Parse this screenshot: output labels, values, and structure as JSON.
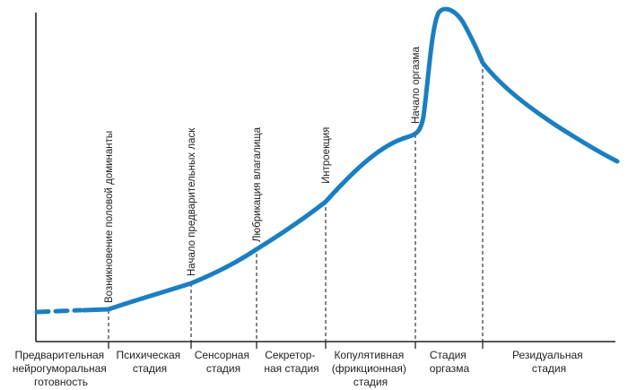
{
  "colors": {
    "curve": "#1a7fc1",
    "axis": "#222222",
    "text": "#222222"
  },
  "events": [
    {
      "id": "dominant",
      "label": "Возникновение  половой доминанты"
    },
    {
      "id": "foreplay",
      "label": "Начало  предварительных  ласк"
    },
    {
      "id": "lubrication",
      "label": "Любрикация  влагалища"
    },
    {
      "id": "intromission",
      "label": "Интроекция"
    },
    {
      "id": "orgasm-onset",
      "label": "Начало  оргазма"
    },
    {
      "id": "orgasm-end",
      "label": ""
    }
  ],
  "stages": [
    {
      "id": "preliminary",
      "lines": [
        "Предварительная",
        "нейрогуморальная",
        "готовность"
      ]
    },
    {
      "id": "psychic",
      "lines": [
        "Психическая",
        "стадия"
      ]
    },
    {
      "id": "sensory",
      "lines": [
        "Сенсорная",
        "стадия"
      ]
    },
    {
      "id": "secretory",
      "lines": [
        "Секретор-",
        "ная стадия"
      ]
    },
    {
      "id": "copulative",
      "lines": [
        "Копулятивная",
        "(фрикционная)",
        "стадия"
      ]
    },
    {
      "id": "orgasm",
      "lines": [
        "Стадия",
        "оргазма"
      ]
    },
    {
      "id": "residual",
      "lines": [
        "Резидуальная",
        "стадия"
      ]
    }
  ]
}
